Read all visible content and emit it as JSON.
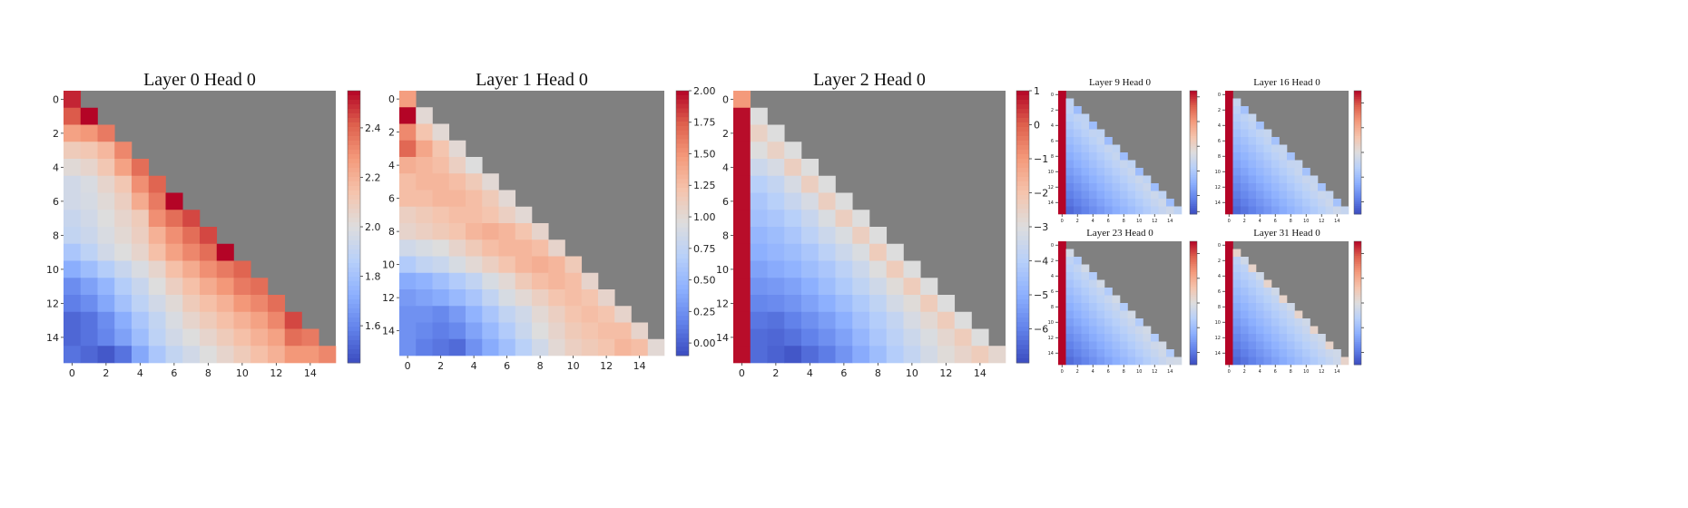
{
  "figure": {
    "colormap": "coolwarm",
    "mask_color": "#808080"
  },
  "chart_data": [
    {
      "type": "heatmap",
      "title": "Layer 0 Head 0",
      "size": 16,
      "causal_mask": true,
      "xticks": [
        "0",
        "2",
        "4",
        "6",
        "8",
        "10",
        "12",
        "14"
      ],
      "yticks": [
        "0",
        "2",
        "4",
        "6",
        "8",
        "10",
        "12",
        "14"
      ],
      "colorbar": {
        "min": 1.45,
        "max": 2.55,
        "ticks": [
          "1.6",
          "1.8",
          "2.0",
          "2.2",
          "2.4"
        ],
        "tick_values": [
          1.6,
          1.8,
          2.0,
          2.2,
          2.4
        ]
      },
      "values": [
        [
          2.5
        ],
        [
          2.42,
          2.55
        ],
        [
          2.25,
          2.28,
          2.35
        ],
        [
          2.1,
          2.12,
          2.18,
          2.32
        ],
        [
          2.02,
          2.05,
          2.12,
          2.25,
          2.38
        ],
        [
          1.95,
          1.98,
          2.05,
          2.12,
          2.3,
          2.4
        ],
        [
          1.95,
          1.97,
          2.02,
          2.08,
          2.22,
          2.35,
          2.55
        ],
        [
          1.92,
          1.95,
          2.0,
          2.05,
          2.1,
          2.3,
          2.38,
          2.45
        ],
        [
          1.9,
          1.93,
          1.98,
          2.03,
          2.08,
          2.2,
          2.3,
          2.38,
          2.45
        ],
        [
          1.82,
          1.88,
          1.95,
          2.0,
          2.05,
          2.15,
          2.25,
          2.32,
          2.38,
          2.55
        ],
        [
          1.72,
          1.78,
          1.85,
          1.92,
          1.98,
          2.05,
          2.15,
          2.22,
          2.3,
          2.35,
          2.4
        ],
        [
          1.62,
          1.68,
          1.75,
          1.85,
          1.92,
          2.0,
          2.08,
          2.15,
          2.22,
          2.28,
          2.35,
          2.38
        ],
        [
          1.58,
          1.62,
          1.7,
          1.8,
          1.88,
          1.95,
          2.02,
          2.1,
          2.15,
          2.2,
          2.28,
          2.32,
          2.38
        ],
        [
          1.52,
          1.55,
          1.62,
          1.72,
          1.82,
          1.9,
          1.98,
          2.05,
          2.1,
          2.15,
          2.2,
          2.25,
          2.32,
          2.45
        ],
        [
          1.52,
          1.55,
          1.6,
          1.68,
          1.78,
          1.88,
          1.95,
          2.0,
          2.05,
          2.1,
          2.15,
          2.2,
          2.25,
          2.38,
          2.35
        ],
        [
          1.55,
          1.52,
          1.48,
          1.55,
          1.7,
          1.82,
          1.9,
          1.95,
          2.0,
          2.05,
          2.1,
          2.15,
          2.2,
          2.28,
          2.28,
          2.32
        ]
      ]
    },
    {
      "type": "heatmap",
      "title": "Layer 1 Head 0",
      "size": 16,
      "causal_mask": true,
      "xticks": [
        "0",
        "2",
        "4",
        "6",
        "8",
        "10",
        "12",
        "14"
      ],
      "yticks": [
        "0",
        "2",
        "4",
        "6",
        "8",
        "10",
        "12",
        "14"
      ],
      "colorbar": {
        "min": -0.1,
        "max": 2.0,
        "ticks": [
          "2.00",
          "1.75",
          "1.50",
          "1.25",
          "1.00",
          "0.75",
          "0.50",
          "0.25",
          "0.00"
        ],
        "tick_values": [
          2.0,
          1.75,
          1.5,
          1.25,
          1.0,
          0.75,
          0.5,
          0.25,
          0.0
        ]
      },
      "values": [
        [
          1.45
        ],
        [
          2.0,
          1.0
        ],
        [
          1.55,
          1.2,
          1.0
        ],
        [
          1.7,
          1.4,
          1.2,
          1.0
        ],
        [
          1.35,
          1.3,
          1.25,
          1.1,
          0.95
        ],
        [
          1.25,
          1.3,
          1.3,
          1.25,
          1.15,
          1.0
        ],
        [
          1.25,
          1.25,
          1.3,
          1.3,
          1.25,
          1.15,
          1.0
        ],
        [
          1.1,
          1.15,
          1.2,
          1.25,
          1.25,
          1.2,
          1.1,
          1.0
        ],
        [
          1.05,
          1.1,
          1.15,
          1.2,
          1.3,
          1.35,
          1.3,
          1.2,
          1.05
        ],
        [
          0.85,
          0.9,
          0.95,
          1.05,
          1.15,
          1.25,
          1.3,
          1.3,
          1.25,
          1.05
        ],
        [
          0.65,
          0.75,
          0.8,
          0.9,
          1.0,
          1.1,
          1.2,
          1.3,
          1.35,
          1.3,
          1.15
        ],
        [
          0.4,
          0.45,
          0.55,
          0.65,
          0.75,
          0.9,
          1.0,
          1.15,
          1.25,
          1.3,
          1.25,
          1.05
        ],
        [
          0.3,
          0.35,
          0.4,
          0.5,
          0.6,
          0.75,
          0.9,
          1.0,
          1.1,
          1.2,
          1.25,
          1.2,
          1.05
        ],
        [
          0.25,
          0.25,
          0.2,
          0.3,
          0.45,
          0.6,
          0.75,
          0.85,
          1.0,
          1.1,
          1.2,
          1.25,
          1.2,
          1.05
        ],
        [
          0.25,
          0.2,
          0.15,
          0.2,
          0.35,
          0.5,
          0.65,
          0.8,
          0.95,
          1.05,
          1.15,
          1.2,
          1.25,
          1.25,
          1.05
        ],
        [
          0.25,
          0.15,
          0.1,
          0.05,
          0.25,
          0.4,
          0.55,
          0.7,
          0.85,
          1.0,
          1.1,
          1.15,
          1.2,
          1.3,
          1.25,
          1.0
        ]
      ]
    },
    {
      "type": "heatmap",
      "title": "Layer 2 Head 0",
      "size": 16,
      "causal_mask": true,
      "xticks": [
        "0",
        "2",
        "4",
        "6",
        "8",
        "10",
        "12",
        "14"
      ],
      "yticks": [
        "0",
        "2",
        "4",
        "6",
        "8",
        "10",
        "12",
        "14"
      ],
      "colorbar": {
        "min": -7.0,
        "max": 1.0,
        "ticks": [
          "1",
          "0",
          "−1",
          "−2",
          "−3",
          "−4",
          "−5",
          "−6"
        ],
        "tick_values": [
          1,
          0,
          -1,
          -2,
          -3,
          -4,
          -5,
          -6
        ]
      },
      "values": [
        [
          -1.0
        ],
        [
          0.9,
          -3.0
        ],
        [
          0.9,
          -2.5,
          -3.0
        ],
        [
          0.9,
          -3.0,
          -2.5,
          -3.0
        ],
        [
          0.9,
          -3.5,
          -3.2,
          -2.4,
          -3.0
        ],
        [
          0.9,
          -4.0,
          -3.7,
          -3.2,
          -2.4,
          -3.0
        ],
        [
          0.9,
          -4.3,
          -4.0,
          -3.6,
          -3.2,
          -2.4,
          -3.0
        ],
        [
          0.9,
          -4.5,
          -4.3,
          -4.0,
          -3.6,
          -3.1,
          -2.4,
          -3.0
        ],
        [
          0.9,
          -4.8,
          -4.6,
          -4.3,
          -3.9,
          -3.5,
          -3.1,
          -2.4,
          -3.0
        ],
        [
          0.9,
          -5.0,
          -4.8,
          -4.6,
          -4.3,
          -3.9,
          -3.5,
          -3.1,
          -2.3,
          -3.0
        ],
        [
          0.9,
          -5.3,
          -5.1,
          -4.9,
          -4.6,
          -4.3,
          -3.9,
          -3.5,
          -3.0,
          -2.3,
          -3.0
        ],
        [
          0.9,
          -5.6,
          -5.5,
          -5.3,
          -5.0,
          -4.6,
          -4.2,
          -3.8,
          -3.4,
          -2.9,
          -2.3,
          -3.0
        ],
        [
          0.9,
          -5.9,
          -5.8,
          -5.6,
          -5.3,
          -5.0,
          -4.6,
          -4.2,
          -3.8,
          -3.3,
          -2.9,
          -2.3,
          -3.0
        ],
        [
          0.9,
          -6.2,
          -6.3,
          -6.0,
          -5.7,
          -5.4,
          -5.0,
          -4.5,
          -4.1,
          -3.7,
          -3.2,
          -2.8,
          -2.3,
          -3.0
        ],
        [
          0.9,
          -6.4,
          -6.5,
          -6.3,
          -6.0,
          -5.7,
          -5.3,
          -4.8,
          -4.3,
          -3.9,
          -3.5,
          -3.1,
          -2.7,
          -2.3,
          -3.0
        ],
        [
          0.9,
          -6.4,
          -6.6,
          -6.8,
          -6.4,
          -6.1,
          -5.6,
          -5.1,
          -4.6,
          -4.1,
          -3.7,
          -3.3,
          -2.9,
          -2.6,
          -2.3,
          -2.7
        ]
      ]
    },
    {
      "type": "heatmap",
      "title": "Layer 9 Head 0",
      "size": 16,
      "causal_mask": true,
      "generated": "diagonal-gradient",
      "first_col": 1.0,
      "base": 0.12,
      "slope": 0.025,
      "diag": 0.3,
      "xticks": [
        "0",
        "2",
        "4",
        "6",
        "8",
        "10",
        "12",
        "14"
      ],
      "yticks": [
        "0",
        "2",
        "4",
        "6",
        "8",
        "10",
        "12",
        "14"
      ],
      "colorbar": {
        "min": 0.0,
        "max": 1.0,
        "ticks": [
          "",
          "",
          "",
          "",
          "",
          ""
        ],
        "tick_values": [
          0.95,
          0.75,
          0.55,
          0.35,
          0.15,
          0.02
        ]
      }
    },
    {
      "type": "heatmap",
      "title": "Layer 16 Head 0",
      "size": 16,
      "causal_mask": true,
      "generated": "diagonal-gradient",
      "first_col": 1.0,
      "base": 0.1,
      "slope": 0.025,
      "diag": 0.32,
      "xticks": [
        "0",
        "2",
        "4",
        "6",
        "8",
        "10",
        "12",
        "14"
      ],
      "yticks": [
        "0",
        "2",
        "4",
        "6",
        "8",
        "10",
        "12",
        "14"
      ],
      "colorbar": {
        "min": 0.0,
        "max": 1.0,
        "ticks": [
          "",
          "",
          "",
          "",
          ""
        ],
        "tick_values": [
          0.9,
          0.7,
          0.5,
          0.3,
          0.1
        ]
      }
    },
    {
      "type": "heatmap",
      "title": "Layer 23 Head 0",
      "size": 16,
      "causal_mask": true,
      "generated": "diagonal-gradient",
      "first_col": 1.0,
      "base": 0.14,
      "slope": 0.025,
      "diag": 0.36,
      "xticks": [
        "0",
        "2",
        "4",
        "6",
        "8",
        "10",
        "12",
        "14"
      ],
      "yticks": [
        "0",
        "2",
        "4",
        "6",
        "8",
        "10",
        "12",
        "14"
      ],
      "colorbar": {
        "min": 0.0,
        "max": 1.0,
        "ticks": [
          "",
          "",
          "",
          "",
          ""
        ],
        "tick_values": [
          0.9,
          0.7,
          0.5,
          0.3,
          0.1
        ]
      }
    },
    {
      "type": "heatmap",
      "title": "Layer 31 Head 0",
      "size": 16,
      "causal_mask": true,
      "generated": "diagonal-gradient",
      "first_col": 1.0,
      "base": 0.1,
      "slope": 0.025,
      "diag": 0.45,
      "xticks": [
        "0",
        "2",
        "4",
        "6",
        "8",
        "10",
        "12",
        "14"
      ],
      "yticks": [
        "0",
        "2",
        "4",
        "6",
        "8",
        "10",
        "12",
        "14"
      ],
      "colorbar": {
        "min": 0.0,
        "max": 1.0,
        "ticks": [
          "",
          "",
          "",
          "",
          ""
        ],
        "tick_values": [
          0.9,
          0.7,
          0.5,
          0.3,
          0.1
        ]
      }
    }
  ]
}
